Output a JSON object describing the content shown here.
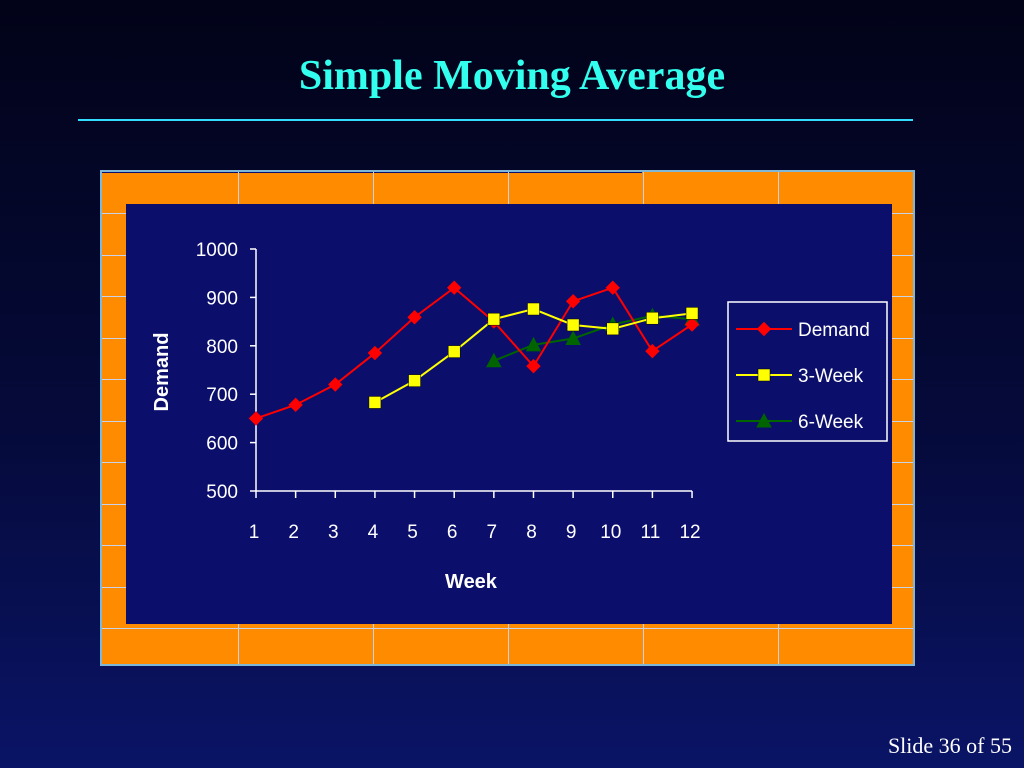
{
  "slide": {
    "title": "Simple Moving Average",
    "footer": "Slide 36 of 55"
  },
  "colors": {
    "title": "#33ffee",
    "frame": "#ff8c00",
    "plot_background": "#0b0f6b",
    "demand": "#ff0000",
    "three_week": "#ffff00",
    "six_week": "#006400"
  },
  "chart_data": {
    "type": "line",
    "title": "",
    "xlabel": "Week",
    "ylabel": "Demand",
    "x": [
      1,
      2,
      3,
      4,
      5,
      6,
      7,
      8,
      9,
      10,
      11,
      12
    ],
    "ylim": [
      500,
      1000
    ],
    "yticks": [
      500,
      600,
      700,
      800,
      900,
      1000
    ],
    "grid": false,
    "legend_position": "right",
    "series": [
      {
        "name": "Demand",
        "color": "#ff0000",
        "marker": "diamond",
        "values": [
          650,
          678,
          720,
          785,
          859,
          920,
          850,
          758,
          892,
          920,
          789,
          844
        ]
      },
      {
        "name": "3-Week",
        "color": "#ffff00",
        "marker": "square",
        "values": [
          null,
          null,
          null,
          683,
          728,
          788,
          855,
          876,
          843,
          835,
          857,
          867
        ]
      },
      {
        "name": "6-Week",
        "color": "#006400",
        "marker": "triangle",
        "values": [
          null,
          null,
          null,
          null,
          null,
          null,
          769,
          802,
          815,
          844,
          862,
          855
        ]
      }
    ]
  }
}
